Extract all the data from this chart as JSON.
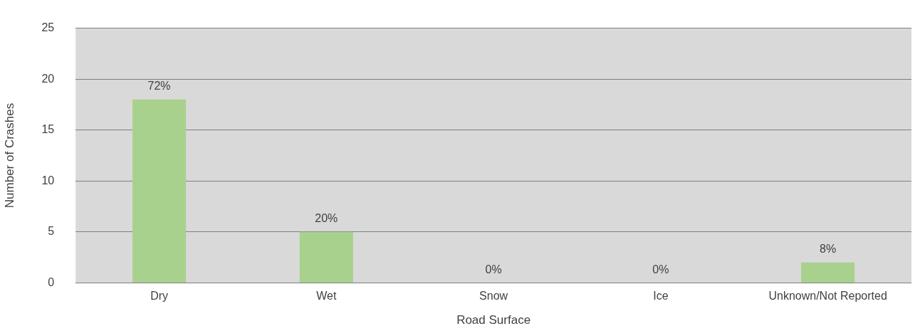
{
  "chart_data": {
    "type": "bar",
    "xlabel": "Road Surface",
    "ylabel": "Number of Crashes",
    "categories": [
      "Dry",
      "Wet",
      "Snow",
      "Ice",
      "Unknown/Not Reported"
    ],
    "values": [
      18,
      5,
      0,
      0,
      2
    ],
    "color": "#a9d18e",
    "annotations": [
      {
        "text": "72%",
        "x": "Dry",
        "y": 18
      },
      {
        "text": "20%",
        "x": "Wet",
        "y": 5
      },
      {
        "text": "0%",
        "x": "Snow",
        "y": 0
      },
      {
        "text": "0%",
        "x": "Ice",
        "y": 0
      },
      {
        "text": "8%",
        "x": "Unknown/Not Reported",
        "y": 2
      }
    ],
    "ylim": [
      0,
      25
    ],
    "yticks": [
      0,
      5,
      10,
      15,
      20,
      25
    ],
    "grid": "y",
    "legend": false
  }
}
